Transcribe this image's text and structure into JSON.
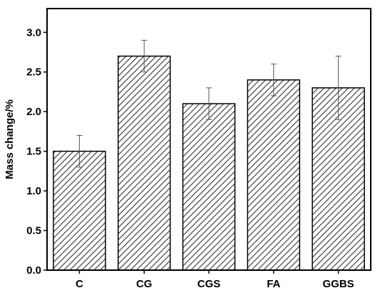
{
  "chart_data": {
    "type": "bar",
    "title": "",
    "xlabel": "",
    "ylabel": "Mass change/%",
    "categories": [
      "C",
      "CG",
      "CGS",
      "FA",
      "GGBS"
    ],
    "values": [
      1.5,
      2.7,
      2.1,
      2.4,
      2.3
    ],
    "error_bars": [
      0.2,
      0.2,
      0.2,
      0.2,
      0.4
    ],
    "ylim": [
      0,
      3.3
    ],
    "yticks": [
      "0.0",
      "0.5",
      "1.0",
      "1.5",
      "2.0",
      "2.5",
      "3.0"
    ],
    "grid": false,
    "legend": "none",
    "bar_fill": "diagonal-hatch",
    "colors": {
      "bar_edge": "#000000",
      "hatch": "#333333",
      "error_bar": "#555555",
      "axis": "#000000"
    }
  }
}
